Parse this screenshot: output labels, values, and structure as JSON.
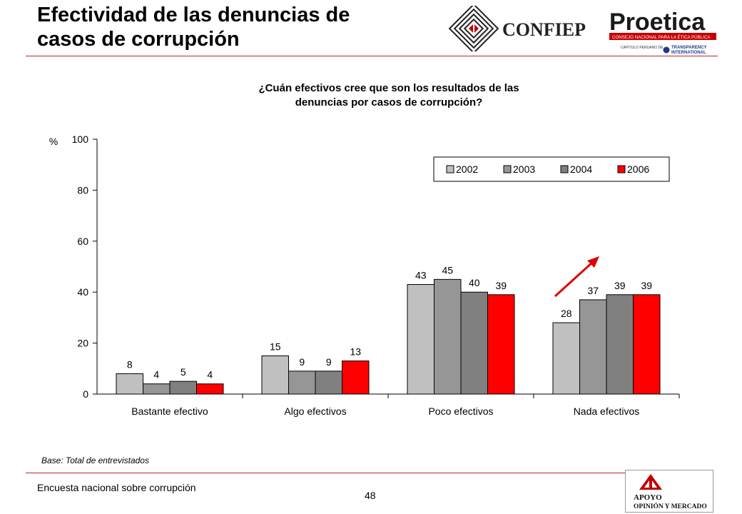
{
  "header": {
    "title_line1": "Efectividad de las denuncias de",
    "title_line2": "casos de corrupción"
  },
  "logos": {
    "confiep": "CONFIEP",
    "proetica": "Proetica",
    "proetica_sub": "CONSEJO NACIONAL PARA LA ÉTICA PÚBLICA",
    "proetica_cap": "CAPÍTULO PERUANO DE",
    "transparency_line1": "TRANSPARENCY",
    "transparency_line2": "INTERNATIONAL",
    "apoyo_line1": "APOYO",
    "apoyo_line2": "OPINIÓN Y MERCADO"
  },
  "question": {
    "line1": "¿Cuán efectivos cree que son los resultados de las",
    "line2": "denuncias por casos de corrupción?"
  },
  "chart_data": {
    "type": "bar",
    "ylabel": "%",
    "ylim": [
      0,
      100
    ],
    "yticks": [
      0,
      20,
      40,
      60,
      80,
      100
    ],
    "categories": [
      "Bastante efectivo",
      "Algo efectivos",
      "Poco efectivos",
      "Nada efectivos"
    ],
    "series": [
      {
        "name": "2002",
        "color": "#c0c0c0",
        "values": [
          8,
          15,
          43,
          28
        ]
      },
      {
        "name": "2003",
        "color": "#969696",
        "values": [
          4,
          9,
          45,
          37
        ]
      },
      {
        "name": "2004",
        "color": "#808080",
        "values": [
          5,
          9,
          40,
          39
        ]
      },
      {
        "name": "2006",
        "color": "#ff0000",
        "values": [
          4,
          13,
          39,
          39
        ]
      }
    ],
    "legend_position": "top-right",
    "grid": false,
    "annotation": "red upward arrow over Nada efectivos"
  },
  "footer": {
    "base": "Base: Total de entrevistados",
    "survey": "Encuesta nacional sobre corrupción",
    "page": "48"
  },
  "colors": {
    "accent_red": "#e00000",
    "rule": "#b42a2a"
  }
}
